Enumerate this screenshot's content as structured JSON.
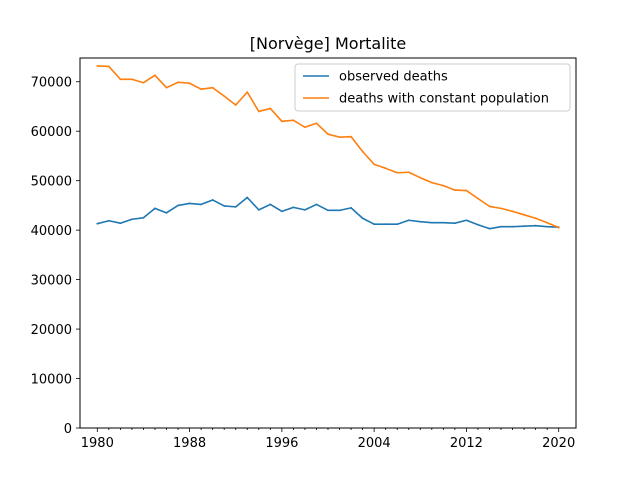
{
  "chart_data": {
    "type": "line",
    "title": "[Norvège] Mortalite",
    "xlabel": "",
    "ylabel": "",
    "xlim": [
      1978.5,
      2021.5
    ],
    "ylim": [
      0,
      74800
    ],
    "x_ticks": [
      1980,
      1988,
      1996,
      2004,
      2012,
      2020
    ],
    "x_minor_ticks": [
      1980,
      1981,
      1982,
      1983,
      1984,
      1985,
      1986,
      1987,
      1988,
      1989,
      1990,
      1991,
      1992,
      1993,
      1994,
      1995,
      1996,
      1997,
      1998,
      1999,
      2000,
      2001,
      2002,
      2003,
      2004,
      2005,
      2006,
      2007,
      2008,
      2009,
      2010,
      2011,
      2012,
      2013,
      2014,
      2015,
      2016,
      2017,
      2018,
      2019,
      2020
    ],
    "y_ticks": [
      0,
      10000,
      20000,
      30000,
      40000,
      50000,
      60000,
      70000
    ],
    "grid": false,
    "legend_position": "upper right",
    "x": [
      1980,
      1981,
      1982,
      1983,
      1984,
      1985,
      1986,
      1987,
      1988,
      1989,
      1990,
      1991,
      1992,
      1993,
      1994,
      1995,
      1996,
      1997,
      1998,
      1999,
      2000,
      2001,
      2002,
      2003,
      2004,
      2005,
      2006,
      2007,
      2008,
      2009,
      2010,
      2011,
      2012,
      2013,
      2014,
      2015,
      2016,
      2017,
      2018,
      2019,
      2020
    ],
    "series": [
      {
        "name": "observed deaths",
        "color": "#1f77b4",
        "values": [
          41300,
          41900,
          41400,
          42200,
          42500,
          44400,
          43500,
          45000,
          45400,
          45200,
          46100,
          44900,
          44700,
          46600,
          44100,
          45200,
          43800,
          44600,
          44100,
          45200,
          44000,
          44000,
          44500,
          42400,
          41200,
          41200,
          41200,
          42000,
          41700,
          41500,
          41500,
          41400,
          42000,
          41100,
          40300,
          40700,
          40700,
          40800,
          40900,
          40700,
          40600
        ]
      },
      {
        "name": "deaths with constant population",
        "color": "#ff7f0e",
        "values": [
          73200,
          73100,
          70500,
          70500,
          69800,
          71300,
          68800,
          69900,
          69700,
          68500,
          68800,
          67100,
          65300,
          67900,
          64000,
          64600,
          62000,
          62200,
          60800,
          61600,
          59400,
          58800,
          58900,
          55900,
          53300,
          52500,
          51600,
          51700,
          50600,
          49600,
          49000,
          48100,
          48000,
          46400,
          44800,
          44400,
          43800,
          43100,
          42400,
          41500,
          40500
        ]
      }
    ]
  }
}
